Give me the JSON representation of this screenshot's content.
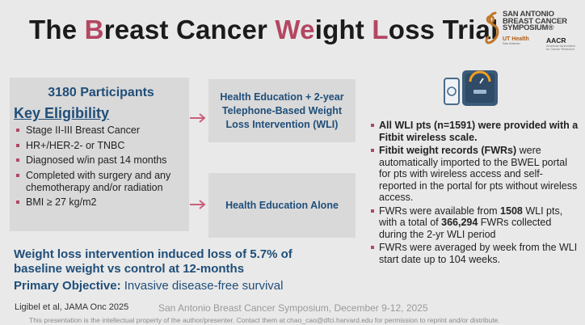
{
  "title": {
    "p1": "The ",
    "h1": "B",
    "p2": "reast Cancer ",
    "h2": "We",
    "p3": "ight ",
    "h3": "L",
    "p4": "oss Trial"
  },
  "colors": {
    "accent": "#b34762",
    "heading_blue": "#1f4e79",
    "panel": "#d9d9d9",
    "background": "#e9e9e9"
  },
  "logos": {
    "sabcs_line1": "SAN ANTONIO",
    "sabcs_line2": "BREAST CANCER",
    "sabcs_line3": "SYMPOSIUM®",
    "ut_health": "UT Health",
    "ut_sub": "San Antonio",
    "aacr": "AACR",
    "aacr_sub": "American Association for Cancer Research"
  },
  "eligibility": {
    "participants": "3180 Participants",
    "heading": "Key Eligibility",
    "criteria": [
      "Stage II-III Breast Cancer",
      "HR+/HER-2- or TNBC",
      "Diagnosed w/in past 14 months",
      "Completed with surgery and any chemotherapy and/or radiation",
      "BMI ≥ 27 kg/m2"
    ]
  },
  "arms": {
    "intervention": "Health Education + 2-year Telephone-Based Weight Loss Intervention (WLI)",
    "control": "Health Education Alone"
  },
  "icons": {
    "arrow": "right-arrow-icon",
    "device": "phone-and-scale-icon"
  },
  "findings": {
    "f1_bold": "All WLI pts (n=1591) were provided with a Fitbit wireless scale.",
    "f2_bold": "Fitbit weight records (FWRs)",
    "f2_rest": " were automatically imported to the BWEL portal for pts with wireless access and self-reported in the portal for pts without wireless access.",
    "f3_a": "FWRs were available from ",
    "f3_b": "1508",
    "f3_c": " WLI pts, with a total of ",
    "f3_d": "366,294",
    "f3_e": " FWRs collected during the 2-yr WLI period",
    "f4": "FWRs were averaged by week from the WLI start date up to 104 weeks."
  },
  "result": "Weight loss intervention induced loss of 5.7% of baseline weight vs control at 12-months",
  "objective": {
    "label": "Primary Objective:",
    "text": " Invasive disease-free survival"
  },
  "citation": "Ligibel et al, JAMA Onc 2025",
  "conference": "San Antonio Breast Cancer Symposium, December 9-12, 2025",
  "disclaimer": "This presentation is the intellectual property of the author/presenter. Contact them at chao_cao@dfci.harvard.edu for permission to reprint and/or distribute."
}
